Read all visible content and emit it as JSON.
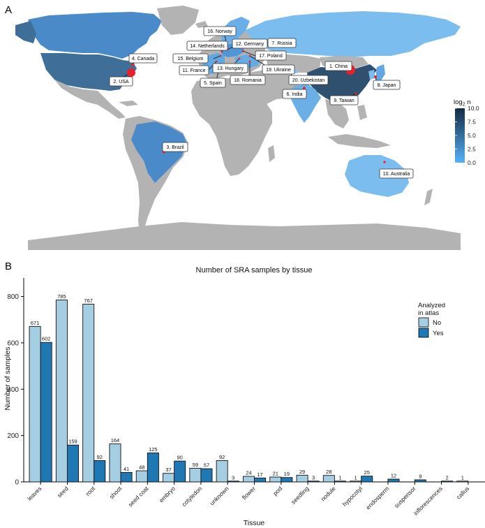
{
  "panels": {
    "a": "A",
    "b": "B"
  },
  "map": {
    "legend_title_main": "log",
    "legend_title_sub": "2",
    "legend_title_var": " n",
    "legend_ticks": [
      "10.0",
      "7.5",
      "5.0",
      "2.5",
      "0.0"
    ],
    "legend_values": [
      10.0,
      7.5,
      5.0,
      2.5,
      0.0
    ],
    "colors": {
      "land_gray": "#b3b3b3",
      "low": "#56b1f7",
      "high": "#132b43",
      "point": "#e8202a"
    },
    "labels": [
      "1. China",
      "2. USA",
      "3. Brazil",
      "4. Canada",
      "5. Spain",
      "6. India",
      "7. Russia",
      "8. Japan",
      "9. Taiwan",
      "10. Australia",
      "11. France",
      "12. Germany",
      "13. Hungary",
      "14. Netherlands",
      "15. Belgium",
      "16. Norway",
      "17. Poland",
      "18. Romania",
      "19. Ukraine",
      "20. Uzbekistan"
    ]
  },
  "chart_data": {
    "type": "bar",
    "title": "Number of SRA samples by tissue",
    "xlabel": "Tissue",
    "ylabel": "Number of samples",
    "ylim": [
      0,
      880
    ],
    "yticks": [
      0,
      200,
      400,
      600,
      800
    ],
    "legend": {
      "title_line1": "Analyzed",
      "title_line2": "in atlas",
      "placement": "right"
    },
    "colors": {
      "No": "#a6cee3",
      "Yes": "#1f78b4"
    },
    "categories": [
      "leaves",
      "seed",
      "root",
      "shoot",
      "seed coat",
      "embryo",
      "cotyledon",
      "unknown",
      "flower",
      "pod",
      "seedling",
      "nodule",
      "hypocotyl",
      "endosperm",
      "suspensor",
      "inflorescences",
      "callus"
    ],
    "series": [
      {
        "name": "No",
        "values": [
          671,
          785,
          767,
          164,
          48,
          37,
          59,
          92,
          24,
          21,
          29,
          28,
          1,
          null,
          null,
          null,
          1
        ]
      },
      {
        "name": "Yes",
        "values": [
          602,
          159,
          92,
          41,
          125,
          90,
          57,
          3,
          17,
          19,
          3,
          1,
          25,
          12,
          9,
          2,
          null
        ]
      }
    ]
  }
}
